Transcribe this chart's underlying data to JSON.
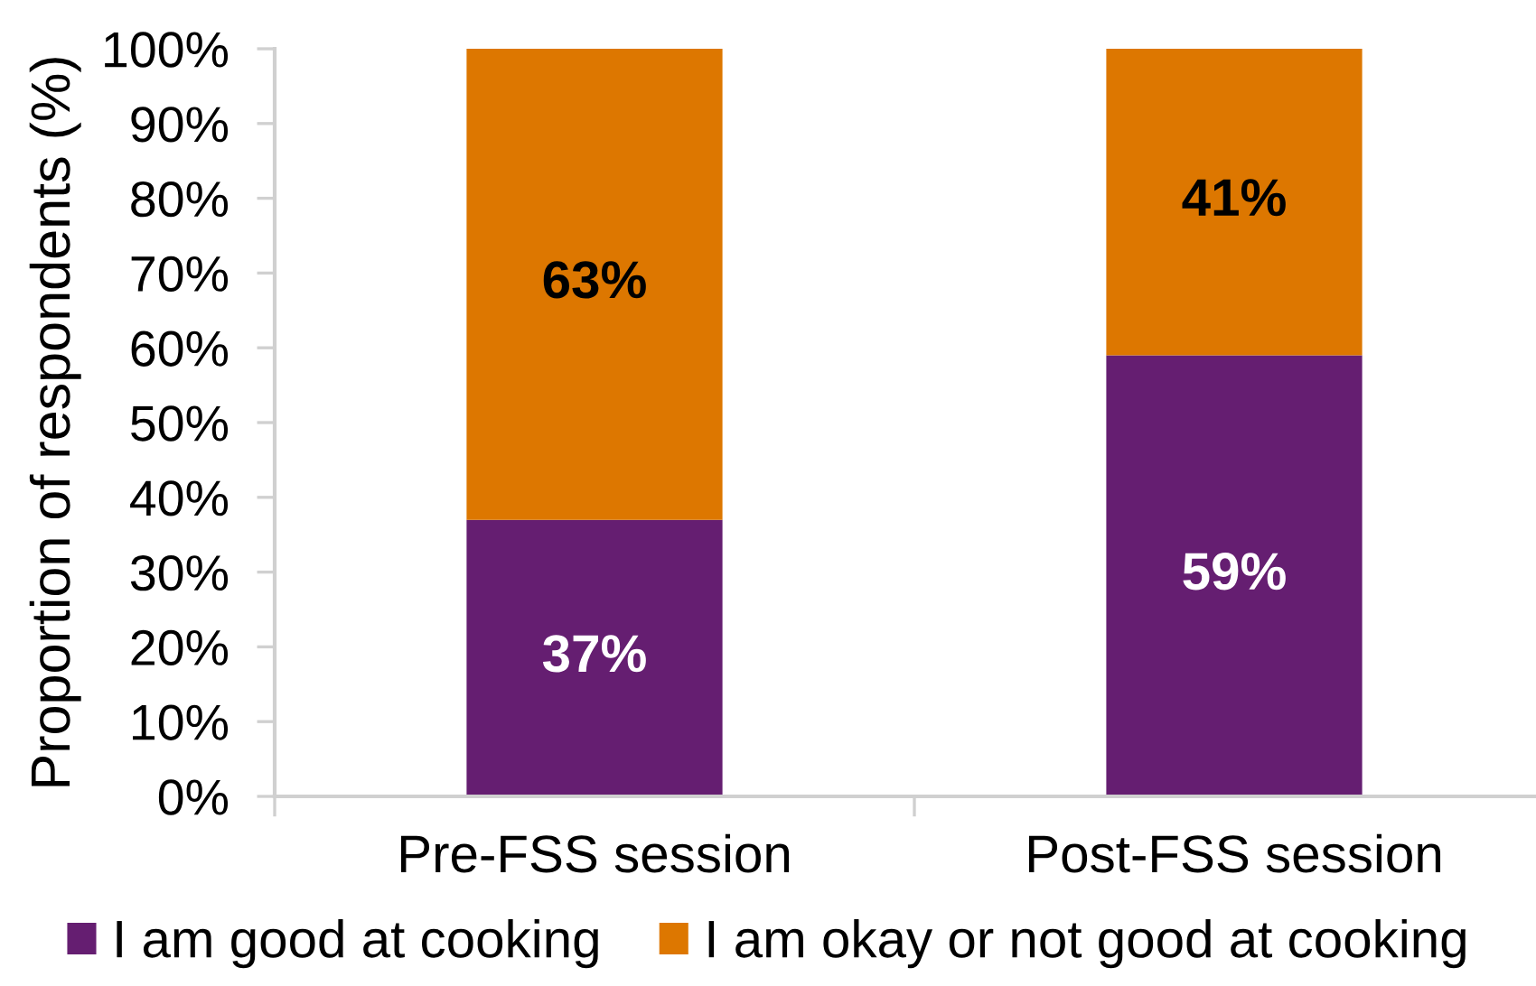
{
  "chart_data": {
    "type": "bar",
    "stacked": true,
    "ylabel": "Proportion of respondents (%)",
    "categories": [
      "Pre-FSS session",
      "Post-FSS session"
    ],
    "series": [
      {
        "name": "I am good at cooking",
        "color": "#651e71",
        "values": [
          37,
          59
        ],
        "value_labels": [
          "37%",
          "59%"
        ]
      },
      {
        "name": "I am okay or not good at cooking",
        "color": "#dd7700",
        "values": [
          63,
          41
        ],
        "value_labels": [
          "63%",
          "41%"
        ]
      }
    ],
    "ylim": [
      0,
      100
    ],
    "yticks": [
      {
        "value": 0,
        "label": "0%"
      },
      {
        "value": 10,
        "label": "10%"
      },
      {
        "value": 20,
        "label": "20%"
      },
      {
        "value": 30,
        "label": "30%"
      },
      {
        "value": 40,
        "label": "40%"
      },
      {
        "value": 50,
        "label": "50%"
      },
      {
        "value": 60,
        "label": "60%"
      },
      {
        "value": 70,
        "label": "70%"
      },
      {
        "value": 80,
        "label": "80%"
      },
      {
        "value": 90,
        "label": "90%"
      },
      {
        "value": 100,
        "label": "100%"
      }
    ],
    "legend": "bottom"
  }
}
